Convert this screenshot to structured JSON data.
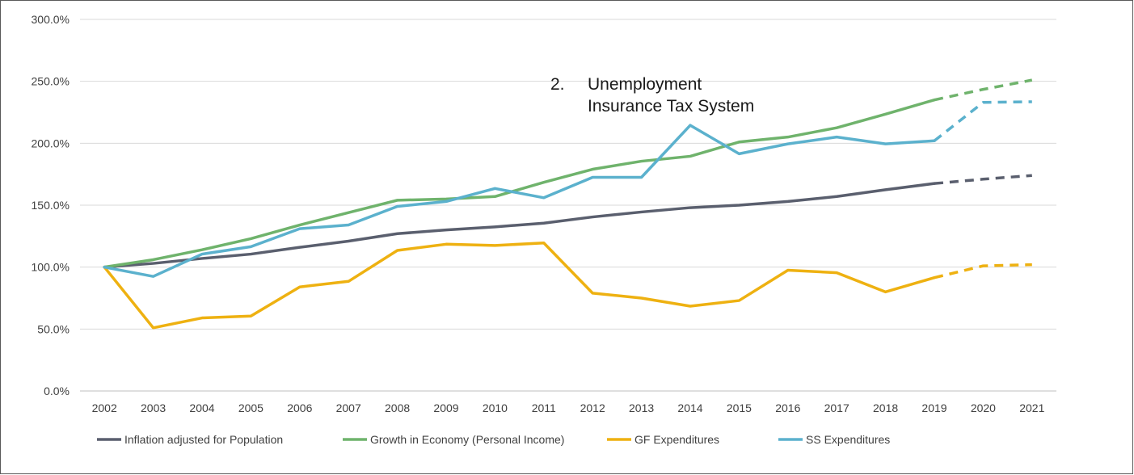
{
  "chart_data": {
    "type": "line",
    "title": "",
    "xlabel": "",
    "ylabel": "",
    "ylim": [
      0,
      300
    ],
    "y_tick_format": "percent_1dp",
    "y_ticks": [
      "0.0%",
      "50.0%",
      "100.0%",
      "150.0%",
      "200.0%",
      "250.0%",
      "300.0%"
    ],
    "grid": "horizontal",
    "legend_position": "bottom",
    "categories": [
      "2002",
      "2003",
      "2004",
      "2005",
      "2006",
      "2007",
      "2008",
      "2009",
      "2010",
      "2011",
      "2012",
      "2013",
      "2014",
      "2015",
      "2016",
      "2017",
      "2018",
      "2019",
      "2020",
      "2021"
    ],
    "projection_start": "2019",
    "annotation": {
      "number": "2.",
      "lines": [
        "Unemployment",
        "Insurance Tax System"
      ]
    },
    "series": [
      {
        "name": "Inflation adjusted for Population",
        "color": "#5a5f6e",
        "values": [
          100,
          103,
          107,
          110.5,
          116,
          121,
          127,
          130,
          132.5,
          135.5,
          140.5,
          144.5,
          148,
          150,
          153,
          157,
          162.5,
          167.5,
          171,
          174
        ]
      },
      {
        "name": "Growth in Economy (Personal Income)",
        "color": "#6fb36c",
        "values": [
          100,
          106,
          114,
          123,
          134,
          144,
          154,
          155,
          157,
          168.5,
          179,
          185.5,
          189.5,
          201,
          205,
          212.5,
          223.5,
          235,
          243.5,
          251
        ]
      },
      {
        "name": "GF Expenditures",
        "color": "#eeb111",
        "values": [
          100,
          51,
          59,
          60.5,
          84,
          88.5,
          113.5,
          118.5,
          117.5,
          119.5,
          79,
          75,
          68.5,
          73,
          97.5,
          95.5,
          80,
          91.5,
          101,
          102
        ]
      },
      {
        "name": "SS Expenditures",
        "color": "#5bb1cd",
        "values": [
          100,
          92.5,
          110.5,
          116.5,
          131,
          134,
          149,
          153,
          163.5,
          156,
          172.5,
          172.5,
          214.5,
          191.5,
          199.5,
          205,
          199.5,
          202,
          233,
          233.5
        ]
      }
    ]
  }
}
